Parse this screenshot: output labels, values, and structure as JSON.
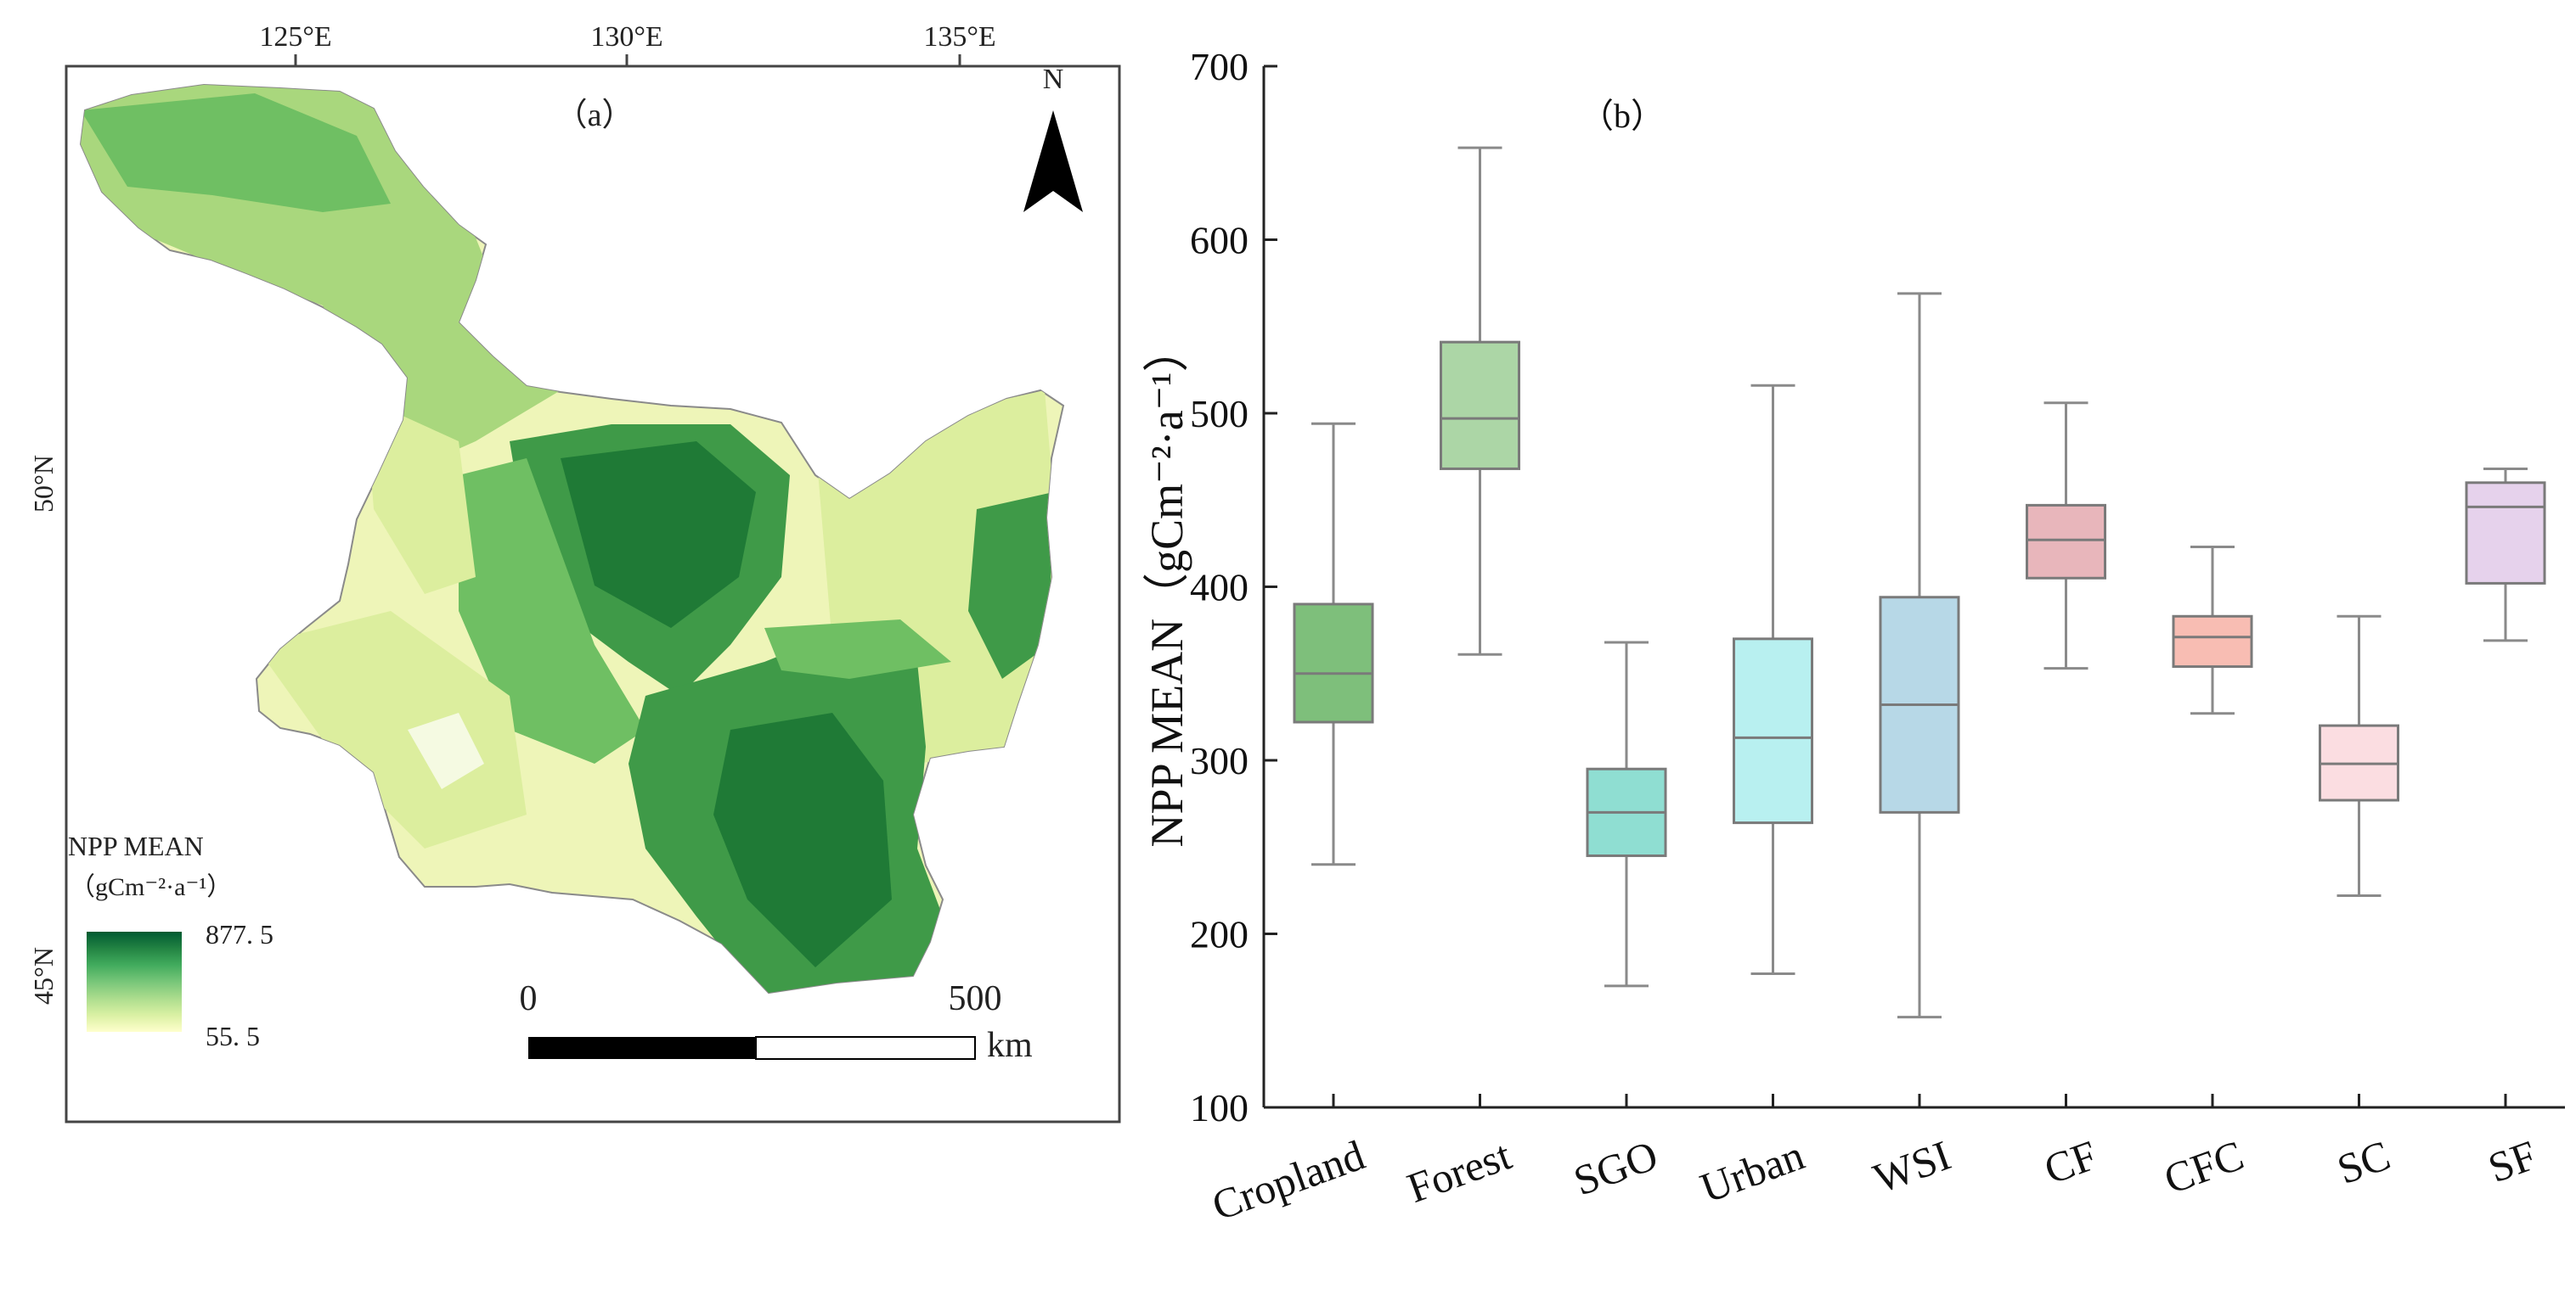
{
  "map": {
    "panel_label": "（a）",
    "north_label": "N",
    "lon_ticks": [
      "125°E",
      "130°E",
      "135°E"
    ],
    "lat_ticks": [
      "50°N",
      "45°N"
    ],
    "legend": {
      "title": "NPP MEAN",
      "unit": "（gCm⁻²·a⁻¹）",
      "max": "877. 5",
      "min": "55. 5",
      "colors": [
        "#ffffcc",
        "#d9f0a3",
        "#addd8e",
        "#78c679",
        "#41ab5d",
        "#238443",
        "#005a32"
      ]
    },
    "scalebar": {
      "start": "0",
      "end": "500",
      "unit": "km"
    },
    "colors": {
      "light": "#eef5b8",
      "pale": "#dcee9e",
      "mid": "#a9d77d",
      "green": "#6fbf63",
      "dark": "#3f9a48",
      "darkest": "#1f7a36"
    }
  },
  "chart_data": {
    "type": "box",
    "panel_label": "（b）",
    "ylabel": "NPP MEAN（gCm⁻²·a⁻¹）",
    "ylim": [
      100,
      700
    ],
    "yticks": [
      100,
      200,
      300,
      400,
      500,
      600,
      700
    ],
    "categories": [
      "Cropland",
      "Forest",
      "SGO",
      "Urban",
      "WSI",
      "CF",
      "CFC",
      "SC",
      "SF"
    ],
    "boxes": [
      {
        "name": "Cropland",
        "min": 240,
        "q1": 322,
        "median": 350,
        "q3": 390,
        "max": 494,
        "fill": "#7ebf7b"
      },
      {
        "name": "Forest",
        "min": 361,
        "q1": 468,
        "median": 497,
        "q3": 541,
        "max": 653,
        "fill": "#acd6a6"
      },
      {
        "name": "SGO",
        "min": 170,
        "q1": 245,
        "median": 270,
        "q3": 295,
        "max": 368,
        "fill": "#8fded2"
      },
      {
        "name": "Urban",
        "min": 177,
        "q1": 264,
        "median": 313,
        "q3": 370,
        "max": 516,
        "fill": "#b8f0f0"
      },
      {
        "name": "WSI",
        "min": 152,
        "q1": 270,
        "median": 332,
        "q3": 394,
        "max": 569,
        "fill": "#b7d8e7"
      },
      {
        "name": "CF",
        "min": 353,
        "q1": 405,
        "median": 427,
        "q3": 447,
        "max": 506,
        "fill": "#e8b6bb"
      },
      {
        "name": "CFC",
        "min": 327,
        "q1": 354,
        "median": 371,
        "q3": 383,
        "max": 423,
        "fill": "#f8bdb3"
      },
      {
        "name": "SC",
        "min": 222,
        "q1": 277,
        "median": 298,
        "q3": 320,
        "max": 383,
        "fill": "#fbdde1"
      },
      {
        "name": "SF",
        "min": 369,
        "q1": 402,
        "median": 446,
        "q3": 460,
        "max": 468,
        "fill": "#e6d2ec"
      }
    ]
  }
}
